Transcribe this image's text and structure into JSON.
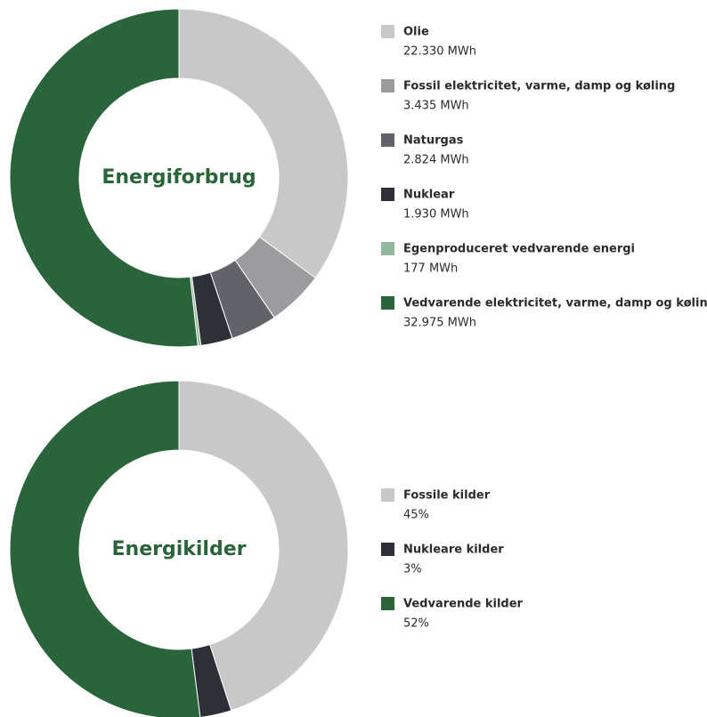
{
  "chart_data": [
    {
      "type": "donut",
      "title": "Energiforbrug",
      "categories": [
        "Olie",
        "Fossil elektricitet, varme, damp og køling",
        "Naturgas",
        "Nuklear",
        "Egenproduceret vedvarende energi",
        "Vedvarende elektricitet, varme, damp og køling"
      ],
      "values": [
        22330,
        3435,
        2824,
        1930,
        177,
        32975
      ],
      "value_labels": [
        "22.330 MWh",
        "3.435 MWh",
        "2.824 MWh",
        "1.930 MWh",
        "177 MWh",
        "32.975 MWh"
      ],
      "colors": [
        "#c8c8c9",
        "#9c9c9f",
        "#626269",
        "#2e3038",
        "#92b99c",
        "#2a643a"
      ]
    },
    {
      "type": "donut",
      "title": "Energikilder",
      "categories": [
        "Fossile kilder",
        "Nukleare kilder",
        "Vedvarende kilder"
      ],
      "values": [
        45,
        3,
        52
      ],
      "value_labels": [
        "45%",
        "3%",
        "52%"
      ],
      "colors": [
        "#c8c8c9",
        "#2e3038",
        "#2a643a"
      ]
    }
  ]
}
